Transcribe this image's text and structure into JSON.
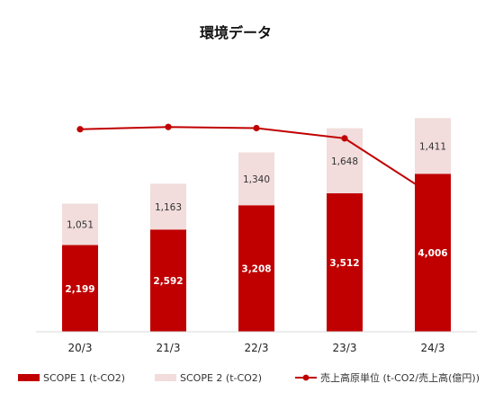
{
  "chart_data": {
    "type": "bar",
    "stacked": true,
    "title": "環境データ",
    "categories": [
      "20/3",
      "21/3",
      "22/3",
      "23/3",
      "24/3"
    ],
    "series": [
      {
        "name": "SCOPE 1 (t-CO2)",
        "kind": "bar",
        "color": "#c00000",
        "values": [
          2199,
          2592,
          3208,
          3512,
          4006
        ],
        "labels": [
          "2,199",
          "2,592",
          "3,208",
          "3,512",
          "4,006"
        ]
      },
      {
        "name": "SCOPE 2 (t-CO2)",
        "kind": "bar",
        "color": "#f2dcdc",
        "values": [
          1051,
          1163,
          1340,
          1648,
          1411
        ],
        "labels": [
          "1,051",
          "1,163",
          "1,340",
          "1,648",
          "1,411"
        ]
      },
      {
        "name": "売上高原単位 (t-CO2/売上高(億円))",
        "kind": "line",
        "color": "#c00000",
        "values": [
          0.89,
          0.9,
          0.895,
          0.85,
          0.6
        ]
      }
    ],
    "ylim": [
      0,
      7500
    ],
    "line_ylim": [
      0,
      1.3
    ],
    "grid": false,
    "legend_position": "bottom"
  }
}
